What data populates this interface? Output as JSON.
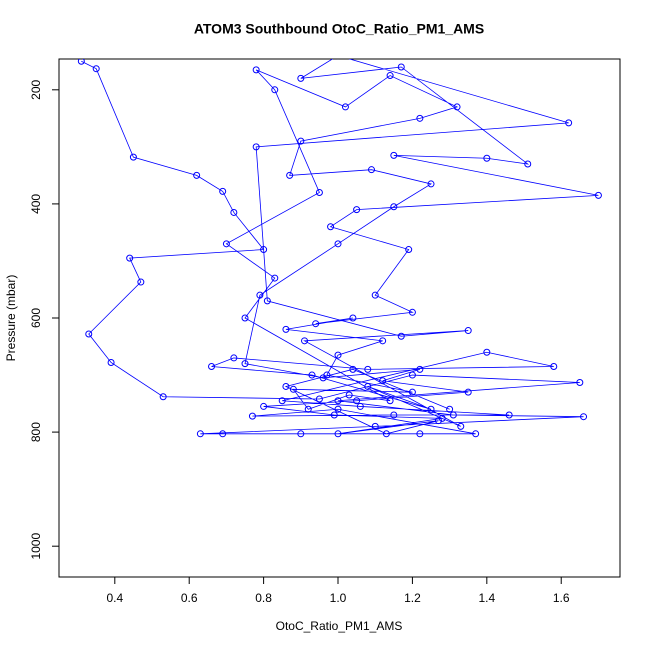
{
  "chart_data": {
    "type": "line",
    "title": "ATOM3 Southbound OtoC_Ratio_PM1_AMS",
    "x_label": "OtoC_Ratio_PM1_AMS",
    "y_label": "Pressure (mbar)",
    "series": [
      {
        "color": "#0000ff",
        "x": [
          0.31,
          0.35,
          0.45,
          0.62,
          0.69,
          0.72,
          0.8,
          0.44,
          0.47,
          0.33,
          0.39,
          0.53,
          0.95,
          1.2,
          1.65,
          1.0,
          1.31,
          1.66,
          1.1,
          0.63,
          0.69,
          0.9,
          1.22,
          1.37,
          1.0,
          0.77,
          1.15,
          1.46,
          1.06,
          0.85,
          1.4,
          1.58,
          1.08,
          0.72,
          0.66,
          0.93,
          1.25,
          1.08,
          1.33,
          0.91,
          1.35,
          1.17,
          0.81,
          0.78,
          1.62,
          1.0,
          0.9,
          1.17,
          1.51,
          1.4,
          1.15,
          1.7,
          1.05,
          0.98,
          1.19,
          1.1,
          1.2,
          0.94,
          1.04,
          0.86,
          1.12,
          1.0,
          0.97,
          1.2,
          0.88,
          0.92,
          1.03,
          1.14,
          0.75,
          0.83,
          0.7,
          0.95,
          0.83,
          0.78,
          1.02,
          1.14,
          1.32,
          1.22,
          0.9,
          0.87,
          1.09,
          1.25,
          1.15,
          1.0,
          0.79,
          0.75,
          0.96,
          1.22,
          1.12,
          1.35,
          1.05,
          0.8,
          0.99,
          1.28,
          1.0,
          1.27,
          1.13,
          0.86,
          1.04,
          1.3
        ],
        "values": [
          150,
          163,
          318,
          350,
          378,
          415,
          480,
          495,
          537,
          628,
          678,
          738,
          742,
          700,
          713,
          745,
          770,
          773,
          790,
          803,
          803,
          803,
          803,
          803,
          760,
          772,
          770,
          770,
          755,
          745,
          660,
          685,
          690,
          670,
          685,
          700,
          760,
          720,
          790,
          640,
          622,
          632,
          570,
          300,
          258,
          140,
          180,
          160,
          330,
          320,
          315,
          385,
          410,
          440,
          480,
          560,
          590,
          610,
          600,
          620,
          640,
          665,
          700,
          730,
          725,
          760,
          735,
          745,
          600,
          530,
          470,
          380,
          200,
          165,
          230,
          175,
          230,
          250,
          290,
          350,
          340,
          365,
          405,
          470,
          560,
          680,
          705,
          690,
          710,
          730,
          745,
          755,
          770,
          776,
          803,
          780,
          803,
          720,
          690,
          760
        ]
      }
    ],
    "xlim": [
      0.25,
      1.758
    ],
    "ylim": [
      1054,
      146
    ],
    "xticks": [
      0.4,
      0.6,
      0.8,
      {
        "value": 1,
        "label": "1.0"
      },
      1.2,
      1.4,
      1.6
    ],
    "yticks": [
      200,
      400,
      600,
      800,
      1000
    ]
  }
}
